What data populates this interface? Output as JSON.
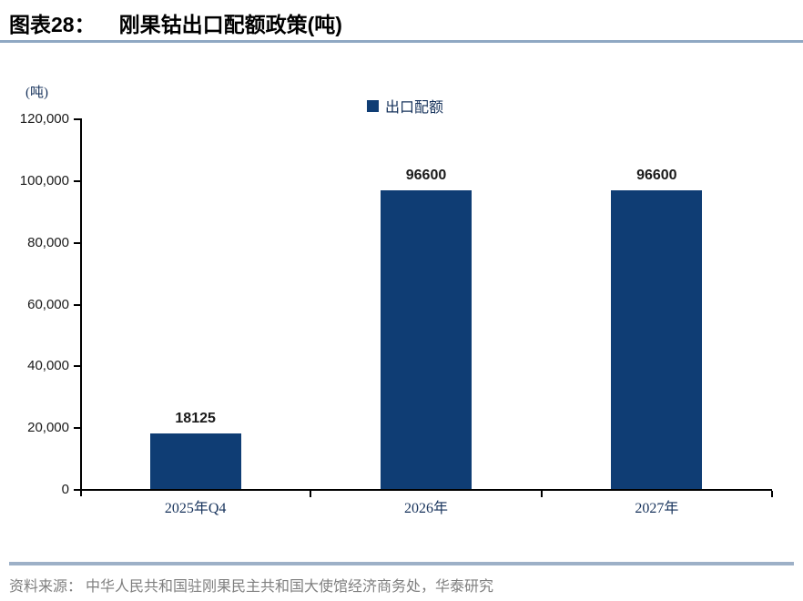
{
  "header": {
    "label": "图表28：",
    "title": "刚果钴出口配额政策(吨)"
  },
  "chart_data": {
    "type": "bar",
    "title": "刚果钴出口配额政策(吨)",
    "unit_label": "(吨)",
    "categories": [
      "2025年Q4",
      "2026年",
      "2027年"
    ],
    "series": [
      {
        "name": "出口配额",
        "values": [
          18125,
          96600,
          96600
        ]
      }
    ],
    "data_labels": [
      "18125",
      "96600",
      "96600"
    ],
    "ylim": [
      0,
      120000
    ],
    "ytick_values": [
      0,
      20000,
      40000,
      60000,
      80000,
      100000,
      120000
    ],
    "ytick_labels": [
      "0",
      "20,000",
      "40,000",
      "60,000",
      "80,000",
      "100,000",
      "120,000"
    ],
    "grid": false,
    "legend_position": "top-center"
  },
  "footer": {
    "source": "资料来源： 中华人民共和国驻刚果民主共和国大使馆经济商务处，华泰研究"
  },
  "colors": {
    "bar": "#0F3D74",
    "title_underline": "#8FA8C3",
    "footer_divider": "#9DB0C7",
    "source_text": "#7F7F7F"
  }
}
